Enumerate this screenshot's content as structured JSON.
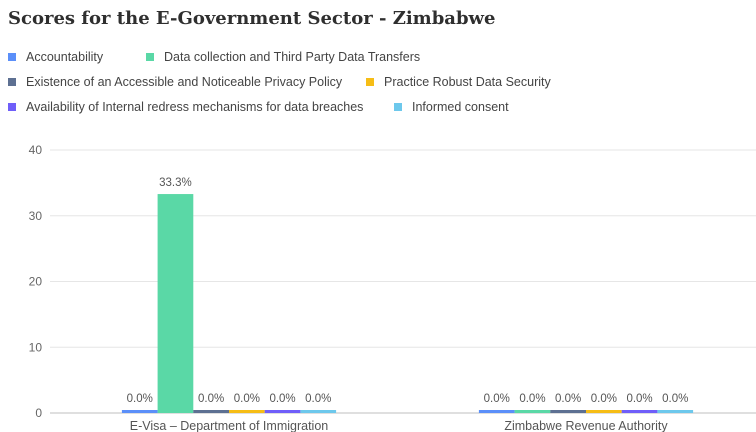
{
  "chart_data": {
    "type": "bar",
    "title": "Scores for the E-Government Sector - Zimbabwe",
    "categories": [
      "E-Visa – Department of Immigration",
      "Zimbabwe Revenue Authority"
    ],
    "series": [
      {
        "name": "Accountability",
        "color": "#5b8ff9",
        "values": [
          0,
          0
        ],
        "labels": [
          "0.0%",
          "0.0%"
        ]
      },
      {
        "name": "Data collection and Third Party Data Transfers",
        "color": "#5ad8a6",
        "values": [
          33.3,
          0
        ],
        "labels": [
          "33.3%",
          "0.0%"
        ]
      },
      {
        "name": "Existence of an Accessible and Noticeable Privacy Policy",
        "color": "#5d7092",
        "values": [
          0,
          0
        ],
        "labels": [
          "0.0%",
          "0.0%"
        ]
      },
      {
        "name": "Practice Robust Data Security",
        "color": "#f6bd16",
        "values": [
          0,
          0
        ],
        "labels": [
          "0.0%",
          "0.0%"
        ]
      },
      {
        "name": "Availability of Internal redress mechanisms for data breaches",
        "color": "#6f5ef9",
        "values": [
          0,
          0
        ],
        "labels": [
          "0.0%",
          "0.0%"
        ]
      },
      {
        "name": "Informed consent",
        "color": "#6dc8ec",
        "values": [
          0,
          0
        ],
        "labels": [
          "0.0%",
          "0.0%"
        ]
      }
    ],
    "y_ticks": [
      "0",
      "10",
      "20",
      "30",
      "40"
    ],
    "ylim": [
      0,
      40
    ],
    "grid": true,
    "legend_position": "top-left",
    "xlabel": "",
    "ylabel": ""
  }
}
